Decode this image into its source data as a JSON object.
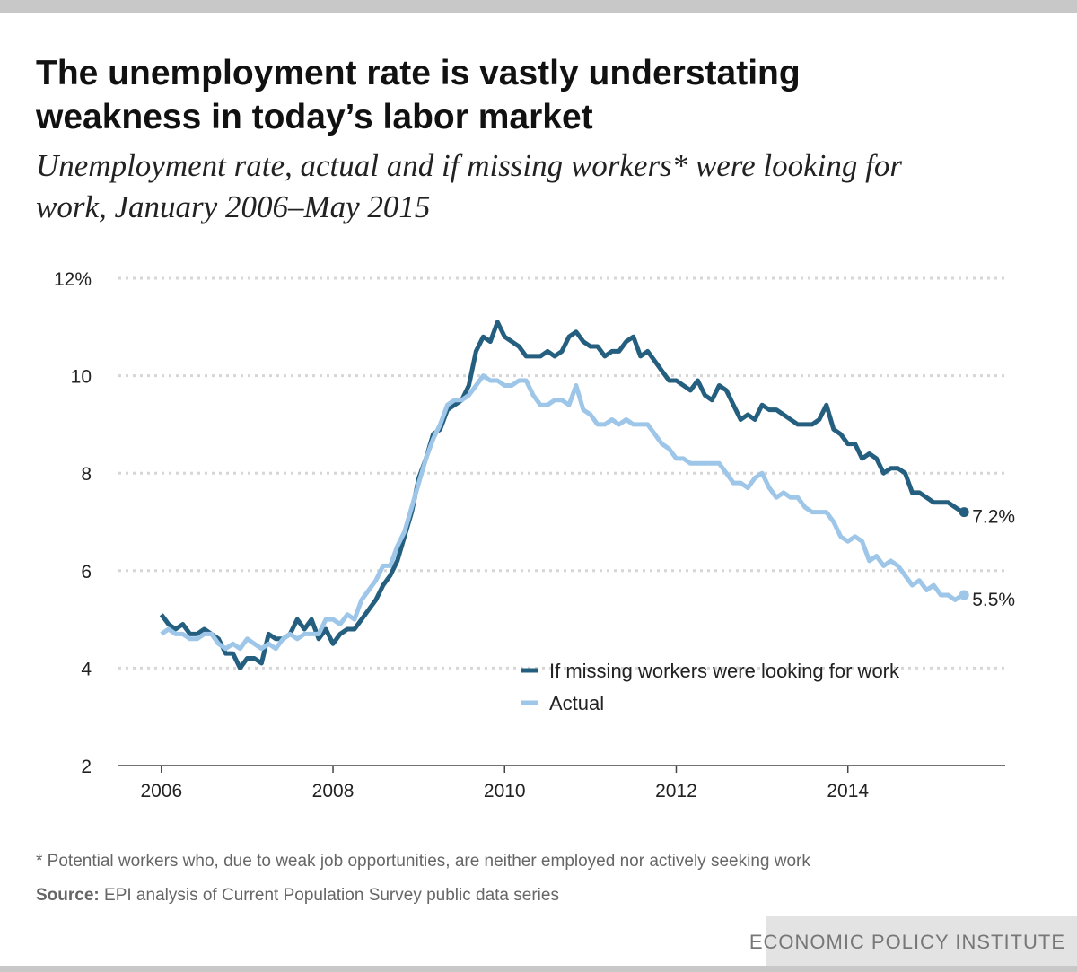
{
  "chart_data": {
    "type": "line",
    "title": [
      "The unemployment rate is vastly understating",
      "weakness in today’s labor market"
    ],
    "subtitle": [
      "Unemployment rate, actual and if missing workers* were looking for",
      "work, January 2006–May 2015"
    ],
    "footnote": "* Potential workers who, due to weak job opportunities, are neither employed nor actively seeking work",
    "source_label": "Source:",
    "source": "EPI analysis of Current Population Survey public data series",
    "brand": "ECONOMIC POLICY INSTITUTE",
    "xlim": [
      "2005-07",
      "2015-11"
    ],
    "xticks": [
      2006,
      2008,
      2010,
      2012,
      2014
    ],
    "ylim": [
      2,
      12
    ],
    "yticks": [
      2,
      4,
      6,
      8,
      10,
      {
        "value": 12,
        "label": "12%"
      }
    ],
    "grid": true,
    "x": [
      "2006-01",
      "2006-02",
      "2006-03",
      "2006-04",
      "2006-05",
      "2006-06",
      "2006-07",
      "2006-08",
      "2006-09",
      "2006-10",
      "2006-11",
      "2006-12",
      "2007-01",
      "2007-02",
      "2007-03",
      "2007-04",
      "2007-05",
      "2007-06",
      "2007-07",
      "2007-08",
      "2007-09",
      "2007-10",
      "2007-11",
      "2007-12",
      "2008-01",
      "2008-02",
      "2008-03",
      "2008-04",
      "2008-05",
      "2008-06",
      "2008-07",
      "2008-08",
      "2008-09",
      "2008-10",
      "2008-11",
      "2008-12",
      "2009-01",
      "2009-02",
      "2009-03",
      "2009-04",
      "2009-05",
      "2009-06",
      "2009-07",
      "2009-08",
      "2009-09",
      "2009-10",
      "2009-11",
      "2009-12",
      "2010-01",
      "2010-02",
      "2010-03",
      "2010-04",
      "2010-05",
      "2010-06",
      "2010-07",
      "2010-08",
      "2010-09",
      "2010-10",
      "2010-11",
      "2010-12",
      "2011-01",
      "2011-02",
      "2011-03",
      "2011-04",
      "2011-05",
      "2011-06",
      "2011-07",
      "2011-08",
      "2011-09",
      "2011-10",
      "2011-11",
      "2011-12",
      "2012-01",
      "2012-02",
      "2012-03",
      "2012-04",
      "2012-05",
      "2012-06",
      "2012-07",
      "2012-08",
      "2012-09",
      "2012-10",
      "2012-11",
      "2012-12",
      "2013-01",
      "2013-02",
      "2013-03",
      "2013-04",
      "2013-05",
      "2013-06",
      "2013-07",
      "2013-08",
      "2013-09",
      "2013-10",
      "2013-11",
      "2013-12",
      "2014-01",
      "2014-02",
      "2014-03",
      "2014-04",
      "2014-05",
      "2014-06",
      "2014-07",
      "2014-08",
      "2014-09",
      "2014-10",
      "2014-11",
      "2014-12",
      "2015-01",
      "2015-02",
      "2015-03",
      "2015-04",
      "2015-05"
    ],
    "series": [
      {
        "name": "If missing workers were looking for work",
        "color": "#245f7f",
        "values": [
          5.1,
          4.9,
          4.8,
          4.9,
          4.7,
          4.7,
          4.8,
          4.7,
          4.6,
          4.3,
          4.3,
          4.0,
          4.2,
          4.2,
          4.1,
          4.7,
          4.6,
          4.6,
          4.7,
          5.0,
          4.8,
          5.0,
          4.6,
          4.8,
          4.5,
          4.7,
          4.8,
          4.8,
          5.0,
          5.2,
          5.4,
          5.7,
          5.9,
          6.2,
          6.7,
          7.2,
          7.9,
          8.3,
          8.8,
          8.9,
          9.3,
          9.4,
          9.5,
          9.8,
          10.5,
          10.8,
          10.7,
          11.1,
          10.8,
          10.7,
          10.6,
          10.4,
          10.4,
          10.4,
          10.5,
          10.4,
          10.5,
          10.8,
          10.9,
          10.7,
          10.6,
          10.6,
          10.4,
          10.5,
          10.5,
          10.7,
          10.8,
          10.4,
          10.5,
          10.3,
          10.1,
          9.9,
          9.9,
          9.8,
          9.7,
          9.9,
          9.6,
          9.5,
          9.8,
          9.7,
          9.4,
          9.1,
          9.2,
          9.1,
          9.4,
          9.3,
          9.3,
          9.2,
          9.1,
          9.0,
          9.0,
          9.0,
          9.1,
          9.4,
          8.9,
          8.8,
          8.6,
          8.6,
          8.3,
          8.4,
          8.3,
          8.0,
          8.1,
          8.1,
          8.0,
          7.6,
          7.6,
          7.5,
          7.4,
          7.4,
          7.4,
          7.3,
          7.2
        ],
        "value_labels": [
          null,
          null,
          null,
          null,
          null,
          null,
          null,
          null,
          null,
          null,
          null,
          null,
          null,
          null,
          null,
          null,
          null,
          null,
          null,
          null,
          null,
          null,
          null,
          null,
          null,
          null,
          null,
          null,
          null,
          null,
          null,
          null,
          null,
          null,
          null,
          null,
          null,
          null,
          null,
          null,
          null,
          null,
          null,
          null,
          null,
          null,
          null,
          null,
          null,
          null,
          null,
          null,
          null,
          null,
          null,
          null,
          null,
          null,
          null,
          null,
          null,
          null,
          null,
          null,
          null,
          null,
          null,
          null,
          null,
          null,
          null,
          null,
          null,
          null,
          null,
          null,
          null,
          null,
          null,
          null,
          null,
          null,
          null,
          null,
          null,
          null,
          null,
          null,
          null,
          null,
          null,
          null,
          null,
          null,
          null,
          null,
          null,
          null,
          null,
          null,
          null,
          null,
          null,
          null,
          null,
          null,
          null,
          null,
          null,
          null,
          null,
          null,
          "7.2%"
        ]
      },
      {
        "name": "Actual",
        "color": "#9dc6e8",
        "values": [
          4.7,
          4.8,
          4.7,
          4.7,
          4.6,
          4.6,
          4.7,
          4.7,
          4.5,
          4.4,
          4.5,
          4.4,
          4.6,
          4.5,
          4.4,
          4.5,
          4.4,
          4.6,
          4.7,
          4.6,
          4.7,
          4.7,
          4.7,
          5.0,
          5.0,
          4.9,
          5.1,
          5.0,
          5.4,
          5.6,
          5.8,
          6.1,
          6.1,
          6.5,
          6.8,
          7.3,
          7.8,
          8.3,
          8.7,
          9.0,
          9.4,
          9.5,
          9.5,
          9.6,
          9.8,
          10.0,
          9.9,
          9.9,
          9.8,
          9.8,
          9.9,
          9.9,
          9.6,
          9.4,
          9.4,
          9.5,
          9.5,
          9.4,
          9.8,
          9.3,
          9.2,
          9.0,
          9.0,
          9.1,
          9.0,
          9.1,
          9.0,
          9.0,
          9.0,
          8.8,
          8.6,
          8.5,
          8.3,
          8.3,
          8.2,
          8.2,
          8.2,
          8.2,
          8.2,
          8.0,
          7.8,
          7.8,
          7.7,
          7.9,
          8.0,
          7.7,
          7.5,
          7.6,
          7.5,
          7.5,
          7.3,
          7.2,
          7.2,
          7.2,
          7.0,
          6.7,
          6.6,
          6.7,
          6.6,
          6.2,
          6.3,
          6.1,
          6.2,
          6.1,
          5.9,
          5.7,
          5.8,
          5.6,
          5.7,
          5.5,
          5.5,
          5.4,
          5.5
        ],
        "value_labels": [
          null,
          null,
          null,
          null,
          null,
          null,
          null,
          null,
          null,
          null,
          null,
          null,
          null,
          null,
          null,
          null,
          null,
          null,
          null,
          null,
          null,
          null,
          null,
          null,
          null,
          null,
          null,
          null,
          null,
          null,
          null,
          null,
          null,
          null,
          null,
          null,
          null,
          null,
          null,
          null,
          null,
          null,
          null,
          null,
          null,
          null,
          null,
          null,
          null,
          null,
          null,
          null,
          null,
          null,
          null,
          null,
          null,
          null,
          null,
          null,
          null,
          null,
          null,
          null,
          null,
          null,
          null,
          null,
          null,
          null,
          null,
          null,
          null,
          null,
          null,
          null,
          null,
          null,
          null,
          null,
          null,
          null,
          null,
          null,
          null,
          null,
          null,
          null,
          null,
          null,
          null,
          null,
          null,
          null,
          null,
          null,
          null,
          null,
          null,
          null,
          null,
          null,
          null,
          null,
          null,
          null,
          null,
          null,
          null,
          null,
          null,
          null,
          "5.5%"
        ]
      }
    ]
  }
}
